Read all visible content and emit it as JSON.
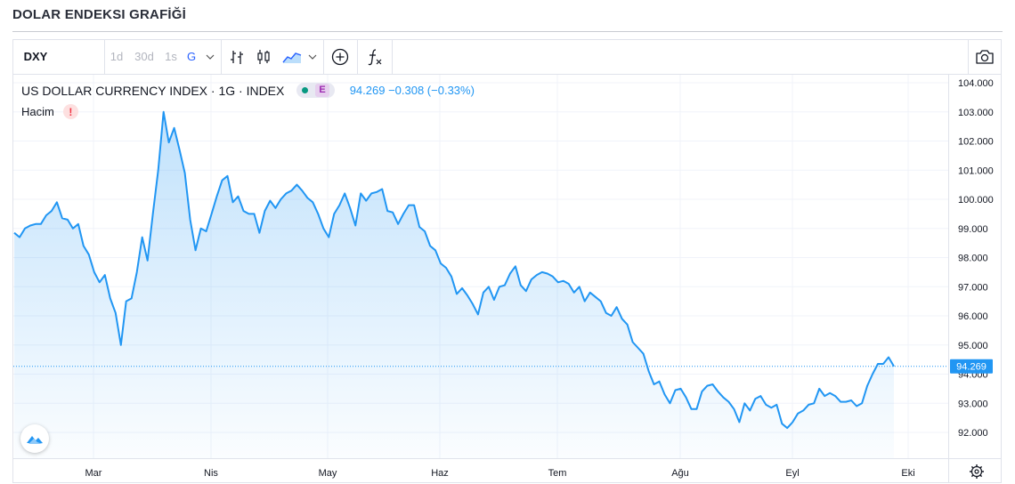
{
  "page": {
    "title": "DOLAR ENDEKSI GRAFİĞİ"
  },
  "toolbar": {
    "symbol": "DXY",
    "intervals": [
      {
        "label": "1d",
        "active": false
      },
      {
        "label": "30d",
        "active": false
      },
      {
        "label": "1s",
        "active": false
      },
      {
        "label": "G",
        "active": true
      }
    ],
    "icons": [
      "chevron-down-icon",
      "bar-chart-icon",
      "candlestick-icon",
      "area-chart-icon",
      "chevron-down-icon",
      "add-compare-icon",
      "indicators-icon",
      "camera-icon"
    ]
  },
  "legend": {
    "name": "US DOLLAR CURRENCY INDEX · 1G · INDEX",
    "badge": "E",
    "values": "94.269 −0.308 (−0.33%)",
    "volume_label": "Hacim",
    "volume_warning": "!"
  },
  "colors": {
    "line": "#2196f3",
    "accent": "#2962ff",
    "price_tag": "#2196f3"
  },
  "chart_data": {
    "type": "area",
    "symbol": "DXY",
    "ylim": [
      91.5,
      104.2
    ],
    "y_ticks": [
      "104.000",
      "103.000",
      "102.000",
      "101.000",
      "100.000",
      "99.000",
      "98.000",
      "97.000",
      "96.000",
      "95.000",
      "94.000",
      "93.000",
      "92.000"
    ],
    "x_ticks": [
      "Mar",
      "Nis",
      "May",
      "Haz",
      "Tem",
      "Ağu",
      "Eyl",
      "Eki"
    ],
    "last_price": "94.269",
    "last_value": 94.269,
    "points": [
      [
        0,
        98.85
      ],
      [
        1,
        98.7
      ],
      [
        2,
        99.0
      ],
      [
        3,
        99.1
      ],
      [
        4,
        99.15
      ],
      [
        5,
        99.15
      ],
      [
        6,
        99.45
      ],
      [
        7,
        99.6
      ],
      [
        8,
        99.9
      ],
      [
        9,
        99.35
      ],
      [
        10,
        99.3
      ],
      [
        11,
        99.0
      ],
      [
        12,
        99.15
      ],
      [
        13,
        98.4
      ],
      [
        14,
        98.1
      ],
      [
        15,
        97.5
      ],
      [
        16,
        97.15
      ],
      [
        17,
        97.4
      ],
      [
        18,
        96.6
      ],
      [
        19,
        96.1
      ],
      [
        20,
        95.0
      ],
      [
        21,
        96.5
      ],
      [
        22,
        96.6
      ],
      [
        23,
        97.5
      ],
      [
        24,
        98.7
      ],
      [
        25,
        97.9
      ],
      [
        26,
        99.5
      ],
      [
        27,
        101.0
      ],
      [
        28,
        103.0
      ],
      [
        29,
        101.95
      ],
      [
        30,
        102.45
      ],
      [
        31,
        101.7
      ],
      [
        32,
        100.9
      ],
      [
        33,
        99.3
      ],
      [
        34,
        98.25
      ],
      [
        35,
        99.0
      ],
      [
        36,
        98.9
      ],
      [
        37,
        99.5
      ],
      [
        38,
        100.1
      ],
      [
        39,
        100.65
      ],
      [
        40,
        100.8
      ],
      [
        41,
        99.9
      ],
      [
        42,
        100.1
      ],
      [
        43,
        99.6
      ],
      [
        44,
        99.5
      ],
      [
        45,
        99.5
      ],
      [
        46,
        98.85
      ],
      [
        47,
        99.6
      ],
      [
        48,
        99.95
      ],
      [
        49,
        99.7
      ],
      [
        50,
        100.0
      ],
      [
        51,
        100.2
      ],
      [
        52,
        100.3
      ],
      [
        53,
        100.5
      ],
      [
        54,
        100.3
      ],
      [
        55,
        100.05
      ],
      [
        56,
        99.9
      ],
      [
        57,
        99.5
      ],
      [
        58,
        99.0
      ],
      [
        59,
        98.7
      ],
      [
        60,
        99.5
      ],
      [
        61,
        99.8
      ],
      [
        62,
        100.2
      ],
      [
        63,
        99.7
      ],
      [
        64,
        99.1
      ],
      [
        65,
        100.2
      ],
      [
        66,
        99.95
      ],
      [
        67,
        100.2
      ],
      [
        68,
        100.25
      ],
      [
        69,
        100.35
      ],
      [
        70,
        99.6
      ],
      [
        71,
        99.55
      ],
      [
        72,
        99.15
      ],
      [
        73,
        99.5
      ],
      [
        74,
        99.8
      ],
      [
        75,
        99.8
      ],
      [
        76,
        99.05
      ],
      [
        77,
        98.9
      ],
      [
        78,
        98.4
      ],
      [
        79,
        98.25
      ],
      [
        80,
        97.8
      ],
      [
        81,
        97.65
      ],
      [
        82,
        97.35
      ],
      [
        83,
        96.75
      ],
      [
        84,
        96.95
      ],
      [
        85,
        96.7
      ],
      [
        86,
        96.4
      ],
      [
        87,
        96.05
      ],
      [
        88,
        96.8
      ],
      [
        89,
        97.0
      ],
      [
        90,
        96.55
      ],
      [
        91,
        97.0
      ],
      [
        92,
        97.05
      ],
      [
        93,
        97.45
      ],
      [
        94,
        97.7
      ],
      [
        95,
        97.05
      ],
      [
        96,
        96.85
      ],
      [
        97,
        97.25
      ],
      [
        98,
        97.4
      ],
      [
        99,
        97.5
      ],
      [
        100,
        97.45
      ],
      [
        101,
        97.35
      ],
      [
        102,
        97.15
      ],
      [
        103,
        97.2
      ],
      [
        104,
        97.1
      ],
      [
        105,
        96.8
      ],
      [
        106,
        97.0
      ],
      [
        107,
        96.5
      ],
      [
        108,
        96.8
      ],
      [
        109,
        96.65
      ],
      [
        110,
        96.5
      ],
      [
        111,
        96.1
      ],
      [
        112,
        96.0
      ],
      [
        113,
        96.3
      ],
      [
        114,
        95.9
      ],
      [
        115,
        95.7
      ],
      [
        116,
        95.1
      ],
      [
        117,
        94.9
      ],
      [
        118,
        94.7
      ],
      [
        119,
        94.1
      ],
      [
        120,
        93.65
      ],
      [
        121,
        93.75
      ],
      [
        122,
        93.3
      ],
      [
        123,
        93.0
      ],
      [
        124,
        93.45
      ],
      [
        125,
        93.5
      ],
      [
        126,
        93.2
      ],
      [
        127,
        92.8
      ],
      [
        128,
        92.8
      ],
      [
        129,
        93.4
      ],
      [
        130,
        93.6
      ],
      [
        131,
        93.65
      ],
      [
        132,
        93.4
      ],
      [
        133,
        93.2
      ],
      [
        134,
        93.05
      ],
      [
        135,
        92.8
      ],
      [
        136,
        92.35
      ],
      [
        137,
        93.0
      ],
      [
        138,
        92.75
      ],
      [
        139,
        93.15
      ],
      [
        140,
        93.25
      ],
      [
        141,
        92.95
      ],
      [
        142,
        92.85
      ],
      [
        143,
        92.95
      ],
      [
        144,
        92.3
      ],
      [
        145,
        92.15
      ],
      [
        146,
        92.35
      ],
      [
        147,
        92.65
      ],
      [
        148,
        92.75
      ],
      [
        149,
        92.95
      ],
      [
        150,
        93.0
      ],
      [
        151,
        93.5
      ],
      [
        152,
        93.25
      ],
      [
        153,
        93.35
      ],
      [
        154,
        93.25
      ],
      [
        155,
        93.05
      ],
      [
        156,
        93.05
      ],
      [
        157,
        93.1
      ],
      [
        158,
        92.9
      ],
      [
        159,
        93.0
      ],
      [
        160,
        93.6
      ],
      [
        161,
        94.0
      ],
      [
        162,
        94.35
      ],
      [
        163,
        94.35
      ],
      [
        164,
        94.58
      ],
      [
        165,
        94.27
      ]
    ]
  }
}
